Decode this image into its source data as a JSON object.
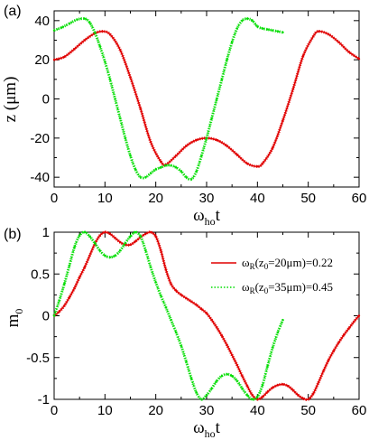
{
  "chart_data": [
    {
      "type": "line",
      "panel_label": "(a)",
      "xlabel_main": "ω",
      "xlabel_sub": "ho",
      "xlabel_tail": "t",
      "ylabel": "z (μm)",
      "xlim": [
        0,
        60
      ],
      "ylim": [
        -45,
        45
      ],
      "xticks": [
        0,
        10,
        20,
        30,
        40,
        50,
        60
      ],
      "yticks": [
        -40,
        -20,
        0,
        20,
        40
      ],
      "grid": false,
      "series": [
        {
          "color": "#e00000",
          "style": "solid-with-dense-markers",
          "x": [
            0,
            2,
            4,
            6,
            8,
            9.5,
            11,
            13,
            15,
            17,
            19,
            21,
            22,
            24,
            26,
            28,
            30,
            32,
            34,
            36,
            38,
            40,
            41,
            43,
            45,
            47,
            49,
            51,
            52,
            54,
            56,
            58,
            60
          ],
          "y": [
            20,
            21.5,
            25.5,
            30,
            33.5,
            34.5,
            33,
            25,
            11,
            -5,
            -22,
            -32,
            -33.5,
            -29,
            -24,
            -21,
            -20,
            -21,
            -24,
            -28.5,
            -33,
            -34.5,
            -33,
            -25,
            -11,
            5,
            22,
            32,
            34.5,
            33,
            29,
            24,
            20.5
          ]
        },
        {
          "color": "#00dd00",
          "style": "dotted-with-dense-markers",
          "x": [
            0,
            1.5,
            3,
            4.5,
            6,
            7,
            8,
            9,
            10,
            11,
            12,
            13,
            14,
            15,
            16,
            17,
            18,
            19,
            20,
            21,
            22,
            23,
            24,
            25,
            26,
            27,
            28,
            29,
            30,
            31,
            32,
            33,
            34,
            35,
            36,
            37,
            38,
            39,
            40,
            41,
            42,
            43,
            44,
            45
          ],
          "y": [
            35,
            36.5,
            38.5,
            40.5,
            41,
            39,
            34,
            27,
            19,
            10,
            0,
            -10,
            -20,
            -29,
            -36,
            -40,
            -40,
            -38,
            -36,
            -35,
            -34,
            -34,
            -35,
            -37,
            -40,
            -41,
            -37,
            -29,
            -20,
            -10,
            0,
            10,
            20,
            29,
            36,
            40,
            41,
            40,
            37,
            36,
            35.5,
            35,
            34.5,
            34
          ]
        }
      ]
    },
    {
      "type": "line",
      "panel_label": "(b)",
      "xlabel_main": "ω",
      "xlabel_sub": "ho",
      "xlabel_tail": "t",
      "ylabel_main": "m",
      "ylabel_sub": "0",
      "xlim": [
        0,
        60
      ],
      "ylim": [
        -1,
        1
      ],
      "xticks": [
        0,
        10,
        20,
        30,
        40,
        50,
        60
      ],
      "yticks": [
        -1,
        -0.5,
        0,
        0.5,
        1
      ],
      "ytick_labels": [
        "-1",
        "-0.5",
        "0",
        "0.5",
        "1"
      ],
      "grid": false,
      "legend_placement": "right",
      "legend": [
        {
          "pre": "ω",
          "sub1": "R",
          "mid": "(z",
          "sub2": "0",
          "post": "=20μm)=0.22",
          "color": "#e00000",
          "style": "solid"
        },
        {
          "pre": "ω",
          "sub1": "R",
          "mid": "(z",
          "sub2": "0",
          "post": "=35μm)=0.45",
          "color": "#00dd00",
          "style": "dotted"
        }
      ],
      "series": [
        {
          "color": "#e00000",
          "style": "solid-with-dense-markers",
          "x": [
            0,
            1,
            2,
            3,
            4,
            5,
            6,
            7,
            8,
            9,
            10,
            11,
            12,
            13,
            14,
            15,
            16,
            17,
            18,
            19,
            20,
            21,
            22,
            23,
            24,
            25,
            26,
            27,
            28,
            29,
            30,
            31,
            32,
            33,
            34,
            35,
            36,
            37,
            38,
            39,
            40,
            41,
            42,
            43,
            44,
            45,
            46,
            47,
            48,
            49,
            50,
            51,
            52,
            53,
            54,
            55,
            56,
            57,
            58,
            59,
            60
          ],
          "y": [
            0,
            0.05,
            0.12,
            0.22,
            0.33,
            0.46,
            0.58,
            0.72,
            0.86,
            0.96,
            1,
            0.98,
            0.93,
            0.88,
            0.85,
            0.85,
            0.89,
            0.94,
            0.98,
            1,
            0.95,
            0.78,
            0.55,
            0.38,
            0.3,
            0.25,
            0.21,
            0.17,
            0.13,
            0.08,
            0.03,
            -0.05,
            -0.14,
            -0.24,
            -0.35,
            -0.47,
            -0.59,
            -0.72,
            -0.84,
            -0.95,
            -1,
            -0.97,
            -0.91,
            -0.86,
            -0.83,
            -0.82,
            -0.84,
            -0.89,
            -0.95,
            -0.99,
            -1,
            -0.93,
            -0.8,
            -0.66,
            -0.53,
            -0.42,
            -0.32,
            -0.23,
            -0.15,
            -0.07,
            0
          ]
        },
        {
          "color": "#00dd00",
          "style": "dotted-with-dense-markers",
          "x": [
            0,
            1,
            2,
            3,
            4,
            5,
            6,
            7,
            8,
            9,
            10,
            11,
            12,
            13,
            14,
            15,
            16,
            17,
            18,
            19,
            20,
            21,
            22,
            23,
            24,
            25,
            26,
            27,
            28,
            29,
            30,
            31,
            32,
            33,
            34,
            35,
            36,
            37,
            38,
            39,
            40,
            41,
            42,
            43,
            44,
            45
          ],
          "y": [
            0,
            0.18,
            0.38,
            0.6,
            0.82,
            0.96,
            1,
            0.95,
            0.87,
            0.78,
            0.72,
            0.7,
            0.72,
            0.78,
            0.87,
            0.95,
            1,
            0.95,
            0.78,
            0.58,
            0.4,
            0.24,
            0.1,
            -0.05,
            -0.2,
            -0.36,
            -0.55,
            -0.75,
            -0.92,
            -1,
            -0.95,
            -0.87,
            -0.78,
            -0.72,
            -0.7,
            -0.72,
            -0.78,
            -0.87,
            -0.95,
            -1,
            -0.97,
            -0.83,
            -0.6,
            -0.38,
            -0.2,
            -0.05
          ]
        }
      ]
    }
  ]
}
